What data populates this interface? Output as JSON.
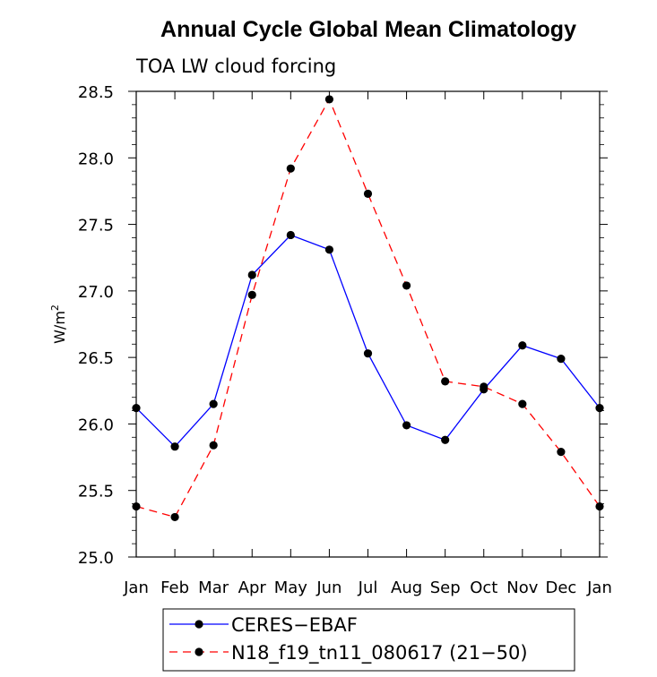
{
  "chart_data": {
    "type": "line",
    "title": "Annual Cycle Global Mean Climatology",
    "subtitle": "TOA LW cloud forcing",
    "xlabel": "",
    "ylabel": "W/m",
    "ylabel_sup": "2",
    "categories": [
      "Jan",
      "Feb",
      "Mar",
      "Apr",
      "May",
      "Jun",
      "Jul",
      "Aug",
      "Sep",
      "Oct",
      "Nov",
      "Dec",
      "Jan"
    ],
    "ylim": [
      25.0,
      28.5
    ],
    "yticks": [
      25.0,
      25.5,
      26.0,
      26.5,
      27.0,
      27.5,
      28.0,
      28.5
    ],
    "ytick_labels": [
      "25.0",
      "25.5",
      "26.0",
      "26.5",
      "27.0",
      "27.5",
      "28.0",
      "28.5"
    ],
    "series": [
      {
        "name": "CERES−EBAF",
        "color": "#0000ff",
        "dash": "solid",
        "values": [
          26.12,
          25.83,
          26.15,
          27.12,
          27.42,
          27.31,
          26.53,
          25.99,
          25.88,
          26.26,
          26.59,
          26.49,
          26.12
        ]
      },
      {
        "name": "N18_f19_tn11_080617 (21−50)",
        "color": "#ff0000",
        "dash": "dashed",
        "values": [
          25.38,
          25.3,
          25.84,
          26.97,
          27.92,
          28.44,
          27.73,
          27.04,
          26.32,
          26.28,
          26.15,
          25.79,
          25.38
        ]
      }
    ]
  }
}
